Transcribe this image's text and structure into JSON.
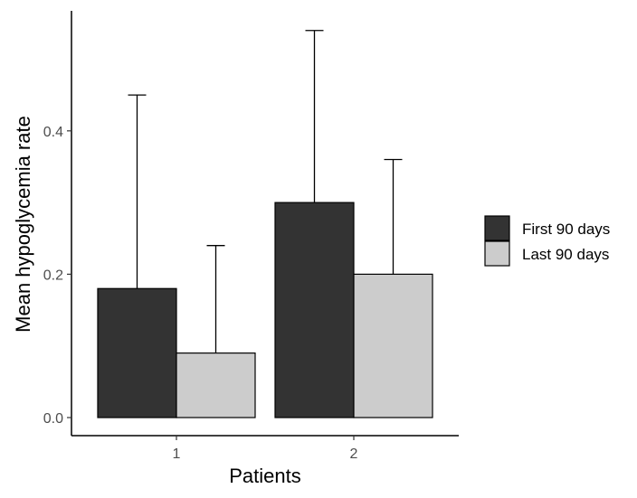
{
  "chart_data": {
    "type": "bar",
    "title": "",
    "xlabel": "Patients",
    "ylabel": "Mean hypoglycemia rate",
    "categories": [
      "1",
      "2"
    ],
    "series": [
      {
        "name": "First 90 days",
        "color": "#333333",
        "values": [
          0.18,
          0.3
        ],
        "error_upper": [
          0.45,
          0.54
        ]
      },
      {
        "name": "Last 90 days",
        "color": "#cccccc",
        "values": [
          0.09,
          0.2
        ],
        "error_upper": [
          0.24,
          0.36
        ]
      }
    ],
    "ylim": [
      0,
      0.56
    ],
    "yticks": [
      0.0,
      0.2,
      0.4
    ],
    "ytick_labels": [
      "0.0",
      "0.2",
      "0.4"
    ],
    "grid": false,
    "legend_position": "right"
  }
}
